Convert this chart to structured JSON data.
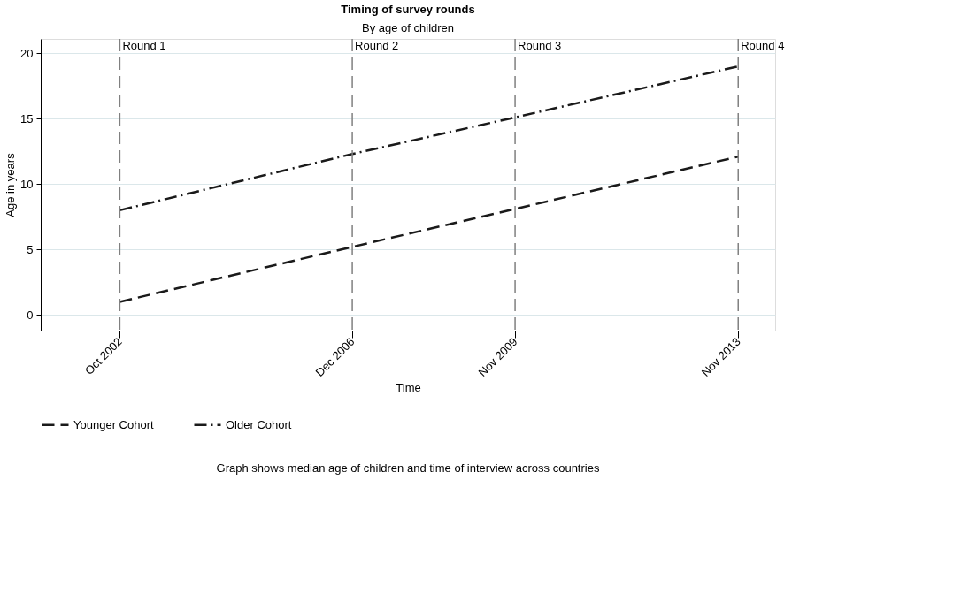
{
  "chart_data": {
    "type": "line",
    "title": "Timing of survey rounds",
    "subtitle": "By age of children",
    "xlabel": "Time",
    "ylabel": "Age in years",
    "x": [
      "2002-10",
      "2006-12",
      "2009-11",
      "2013-11"
    ],
    "series": [
      {
        "name": "Younger Cohort",
        "color": "#1a1a1a",
        "line_style": "dashed",
        "values": [
          1.0,
          5.2,
          8.1,
          12.1
        ]
      },
      {
        "name": "Older Cohort",
        "color": "#1a1a1a",
        "line_style": "dashdot",
        "values": [
          8.0,
          12.3,
          15.1,
          19.0
        ]
      }
    ],
    "xlim": [
      "2001-05",
      "2014-07"
    ],
    "xticks": [
      {
        "value": "2002-10",
        "label": "Oct 2002"
      },
      {
        "value": "2006-12",
        "label": "Dec 2006"
      },
      {
        "value": "2009-11",
        "label": "Nov 2009"
      },
      {
        "value": "2013-11",
        "label": "Nov 2013"
      }
    ],
    "ylim": [
      -1.2,
      21.1
    ],
    "yticks": [
      0,
      5,
      10,
      15,
      20
    ],
    "ref_lines": [
      {
        "axis": "x",
        "value": "2002-10",
        "label": "Round 1",
        "color": "#808080",
        "line_style": "dashed"
      },
      {
        "axis": "x",
        "value": "2006-12",
        "label": "Round 2",
        "color": "#808080",
        "line_style": "dashed"
      },
      {
        "axis": "x",
        "value": "2009-11",
        "label": "Round 3",
        "color": "#808080",
        "line_style": "dashed"
      },
      {
        "axis": "x",
        "value": "2013-11",
        "label": "Round 4",
        "color": "#808080",
        "line_style": "dashed"
      }
    ],
    "grid": "y",
    "legend": "bottom",
    "annotations": [
      "Graph shows median age of children and time of interview across countries"
    ]
  }
}
